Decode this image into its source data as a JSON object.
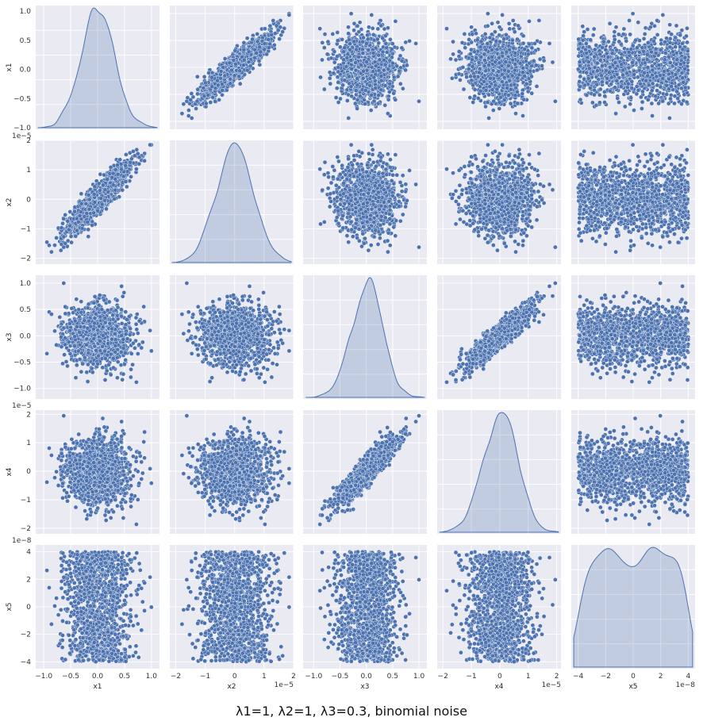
{
  "figure": {
    "title": "λ1=1, λ2=1, λ3=0.3, binomial noise"
  },
  "chart_data": {
    "type": "scatter",
    "kind": "pairplot",
    "diagonal": "kde",
    "grid": true,
    "style": "darkgrid",
    "colors": {
      "points": "#4c72b0",
      "panel_bg": "#eaeaf2",
      "grid": "#ffffff",
      "kde_fill": "#4c72b0"
    },
    "approx_points_per_panel": 10000,
    "variables": [
      {
        "name": "x1",
        "label": "x1",
        "lim": [
          -1.15,
          1.15
        ],
        "ticks": [
          -1.0,
          -0.5,
          0.0,
          0.5,
          1.0
        ],
        "tick_labels": [
          "−1.0",
          "−0.5",
          "0.0",
          "0.5",
          "1.0"
        ],
        "offset": "",
        "std": 0.3
      },
      {
        "name": "x2",
        "label": "x2",
        "lim": [
          -2.2,
          2.0
        ],
        "ticks": [
          -2,
          -1,
          0,
          1,
          2
        ],
        "tick_labels": [
          "−2",
          "−1",
          "0",
          "1",
          "2"
        ],
        "offset": "1e−5",
        "std": 0.6
      },
      {
        "name": "x3",
        "label": "x3",
        "lim": [
          -1.2,
          1.15
        ],
        "ticks": [
          -1.0,
          -0.5,
          0.0,
          0.5,
          1.0
        ],
        "tick_labels": [
          "−1.0",
          "−0.5",
          "0.0",
          "0.5",
          "1.0"
        ],
        "offset": "",
        "std": 0.3
      },
      {
        "name": "x4",
        "label": "x4",
        "lim": [
          -2.2,
          2.15
        ],
        "ticks": [
          -2,
          -1,
          0,
          1,
          2
        ],
        "tick_labels": [
          "−2",
          "−1",
          "0",
          "1",
          "2"
        ],
        "offset": "1e−5",
        "std": 0.6
      },
      {
        "name": "x5",
        "label": "x5",
        "lim": [
          -4.5,
          4.5
        ],
        "ticks": [
          -4,
          -2,
          0,
          2,
          4
        ],
        "tick_labels": [
          "−4",
          "−2",
          "0",
          "2",
          "4"
        ],
        "offset": "1e−8",
        "uniform_halfwidth": 4.0
      }
    ],
    "correlated_pairs": [
      {
        "a": "x1",
        "b": "x2",
        "correlation": 0.92
      },
      {
        "a": "x3",
        "b": "x4",
        "correlation": 0.92
      }
    ]
  }
}
